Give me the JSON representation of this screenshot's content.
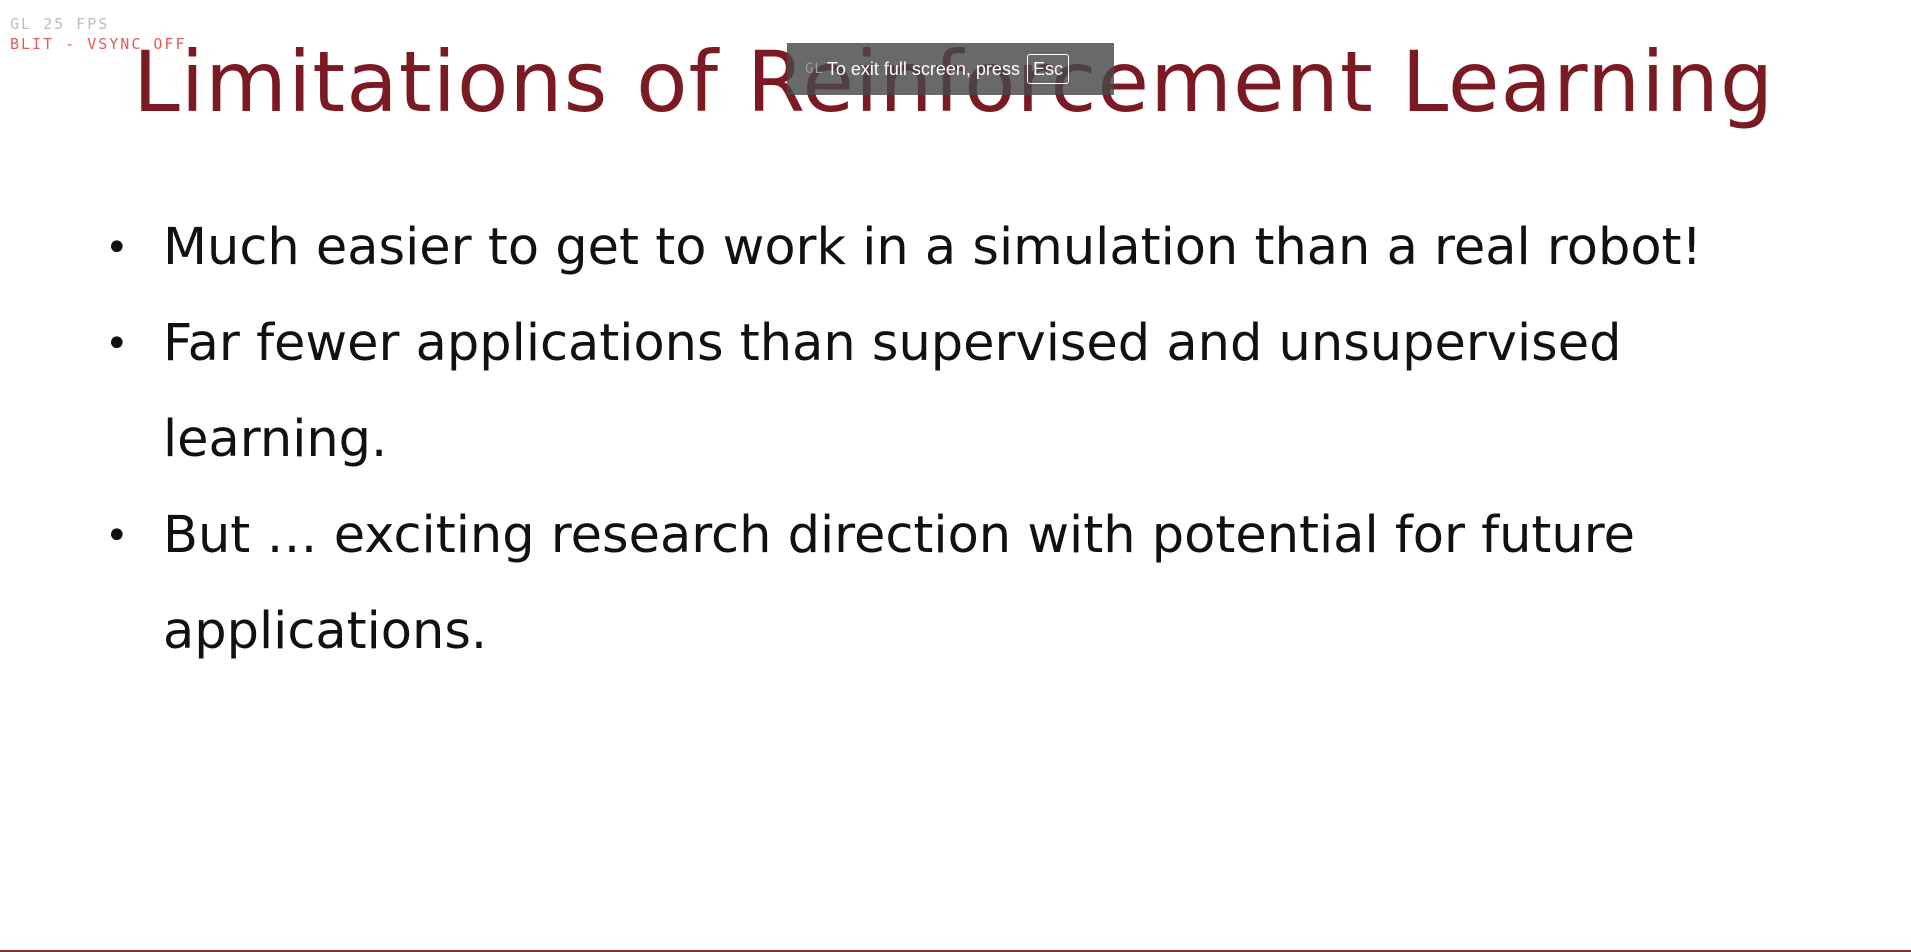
{
  "slide": {
    "title": "Limitations of Reinforcement Learning",
    "bullets": [
      "Much easier to get to work in a simulation than a real robot!",
      "Far fewer applications than supervised and unsupervised learning.",
      "But … exciting research direction with potential for future applications."
    ],
    "bullet_symbol": "•"
  },
  "overlay": {
    "fps": "GL 25 FPS",
    "blit": "BLIT - VSYNC OFF",
    "toast_ghost": "GL",
    "toast_text": "To exit full screen, press",
    "toast_key": "Esc"
  },
  "colors": {
    "title": "#7c1a24",
    "body_text": "#111111",
    "blit": "#e35a5a",
    "toast_bg": "#484848"
  }
}
